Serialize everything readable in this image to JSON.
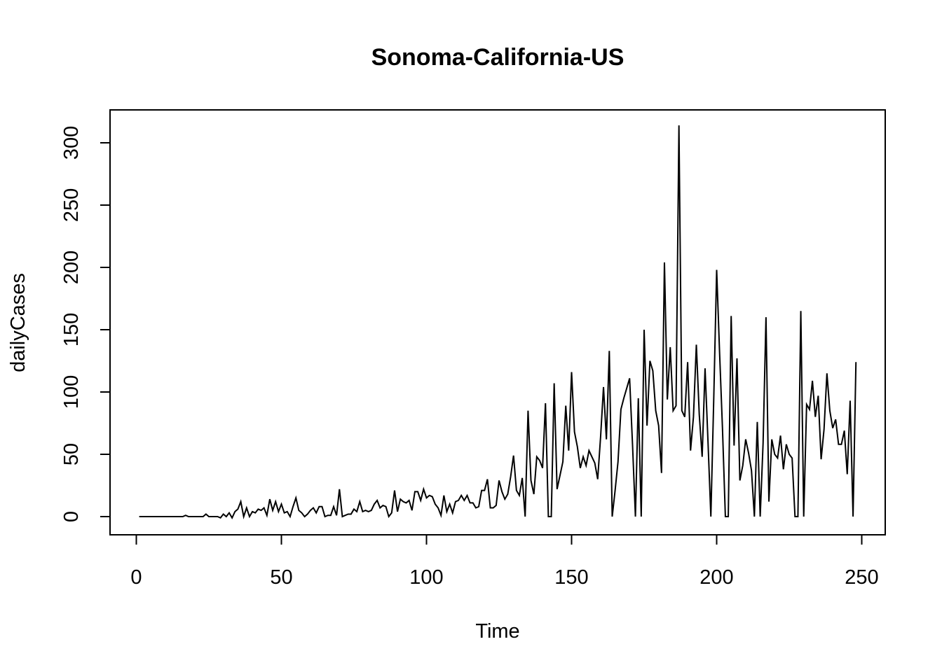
{
  "chart_data": {
    "type": "line",
    "title": "Sonoma-California-US",
    "xlabel": "Time",
    "ylabel": "dailyCases",
    "xlim": [
      1,
      248
    ],
    "ylim": [
      0,
      315
    ],
    "x_ticks": [
      0,
      50,
      100,
      150,
      200,
      250
    ],
    "y_ticks": [
      0,
      50,
      100,
      150,
      200,
      250,
      300
    ],
    "grid": false,
    "legend": "none",
    "x_start": 1,
    "series": [
      {
        "color": "#000000",
        "values": [
          0,
          0,
          0,
          0,
          0,
          0,
          0,
          0,
          0,
          0,
          0,
          0,
          0,
          0,
          0,
          0,
          1,
          0,
          0,
          0,
          0,
          0,
          0,
          2,
          0,
          0,
          0,
          0,
          -1,
          2,
          0,
          3,
          -1,
          4,
          6,
          12,
          0,
          7,
          0,
          4,
          3,
          6,
          5,
          7,
          1,
          14,
          5,
          12,
          4,
          10,
          3,
          4,
          0,
          8,
          15,
          5,
          3,
          0,
          2,
          5,
          7,
          3,
          8,
          8,
          0,
          1,
          1,
          8,
          1,
          22,
          0,
          1,
          2,
          2,
          6,
          4,
          12,
          4,
          5,
          4,
          5,
          10,
          13,
          7,
          9,
          8,
          0,
          3,
          21,
          4,
          14,
          12,
          11,
          13,
          5,
          20,
          20,
          13,
          22,
          15,
          17,
          16,
          10,
          7,
          1,
          17,
          4,
          10,
          3,
          12,
          13,
          17,
          13,
          17,
          11,
          11,
          7,
          8,
          21,
          21,
          30,
          7,
          7,
          9,
          29,
          20,
          14,
          18,
          32,
          49,
          21,
          17,
          31,
          0,
          85,
          29,
          18,
          48,
          45,
          39,
          91,
          0,
          0,
          107,
          22,
          33,
          44,
          89,
          53,
          116,
          68,
          56,
          39,
          48,
          41,
          53,
          48,
          43,
          30,
          64,
          104,
          62,
          133,
          0,
          21,
          44,
          86,
          95,
          103,
          111,
          58,
          0,
          95,
          0,
          150,
          73,
          125,
          117,
          85,
          73,
          35,
          204,
          94,
          136,
          85,
          89,
          314,
          85,
          80,
          124,
          53,
          80,
          138,
          82,
          48,
          119,
          61,
          0,
          95,
          198,
          132,
          71,
          0,
          0,
          161,
          57,
          127,
          29,
          41,
          62,
          51,
          37,
          0,
          76,
          0,
          59,
          160,
          12,
          62,
          50,
          47,
          65,
          38,
          58,
          50,
          47,
          0,
          0,
          165,
          0,
          90,
          86,
          109,
          80,
          97,
          46,
          70,
          115,
          85,
          71,
          78,
          58,
          58,
          69,
          34,
          93,
          0,
          124
        ]
      }
    ]
  }
}
